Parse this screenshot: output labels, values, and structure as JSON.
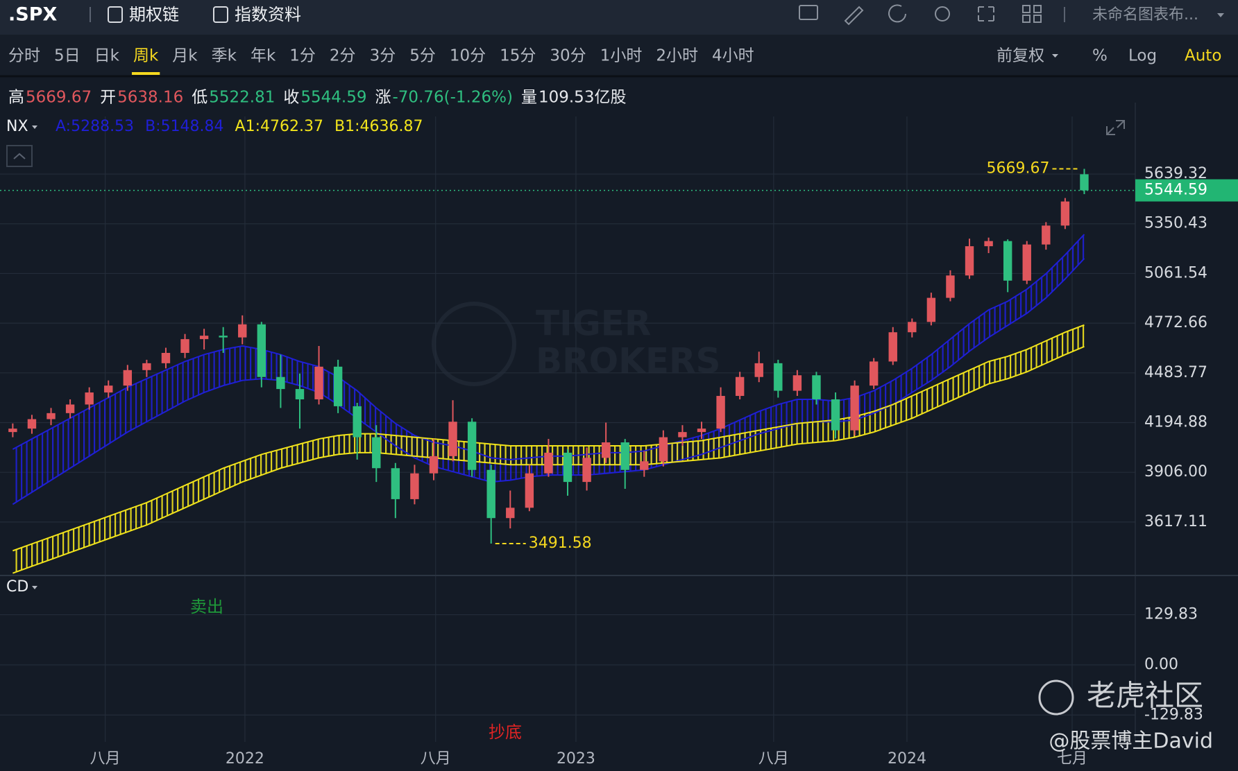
{
  "toolbar": {
    "symbol": ".SPX",
    "links": [
      "期权链",
      "指数资料"
    ],
    "layout_name": "未命名图表布..."
  },
  "periods": {
    "items": [
      "分时",
      "5日",
      "日k",
      "周k",
      "月k",
      "季k",
      "年k",
      "1分",
      "2分",
      "3分",
      "5分",
      "10分",
      "15分",
      "30分",
      "1小时",
      "2小时",
      "4小时"
    ],
    "active": 3
  },
  "options": {
    "items": [
      "前复权",
      "%",
      "Log",
      "Auto"
    ],
    "active": 3
  },
  "quote": [
    {
      "label": "高",
      "value": 5669.67,
      "color": "#e0575d"
    },
    {
      "label": "开",
      "value": 5638.16,
      "color": "#e0575d"
    },
    {
      "label": "低",
      "value": 5522.81,
      "color": "#2fbf80"
    },
    {
      "label": "收",
      "value": 5544.59,
      "color": "#2fbf80"
    },
    {
      "label": "涨",
      "value": "-70.76(-1.26%)",
      "color": "#2fbf80"
    },
    {
      "label": "量",
      "value": "109.53亿股",
      "color": "#e6e8ec"
    }
  ],
  "watermarks": {
    "logo": [
      "TIGER",
      "BROKERS"
    ],
    "community": "老虎社区",
    "author": "@股票博主David"
  },
  "chart_data": [
    {
      "type": "candlestick",
      "indicator": "NX",
      "legend": [
        "A:5288.53",
        "B:5148.84",
        "A1:4762.37",
        "B1:4636.87"
      ],
      "up_color": "#e0575d",
      "down_color": "#2fbf80",
      "xlim": [
        0,
        178
      ],
      "ylim": [
        3314.5,
        5974
      ],
      "xticks": [
        {
          "value": 16.5,
          "label": "八月"
        },
        {
          "value": 38.4,
          "label": "2022"
        },
        {
          "value": 68.3,
          "label": "八月"
        },
        {
          "value": 90.3,
          "label": "2023"
        },
        {
          "value": 121.3,
          "label": "八月"
        },
        {
          "value": 142.2,
          "label": "2024"
        },
        {
          "value": 168.1,
          "label": "七月"
        }
      ],
      "yticks": [
        3617.11,
        {
          "value": 3906,
          "label": "3906.00"
        },
        4194.88,
        4483.77,
        4772.66,
        5061.54,
        5350.43,
        5639.32
      ],
      "grid": true,
      "x": [
        2,
        5,
        8,
        11,
        14,
        17,
        20,
        23,
        26,
        29,
        32,
        35,
        38,
        41,
        44,
        47,
        50,
        53,
        56,
        59,
        62,
        65,
        68,
        71,
        74,
        77,
        80,
        83,
        86,
        89,
        92,
        95,
        98,
        101,
        104,
        107,
        110,
        113,
        116,
        119,
        122,
        125,
        128,
        131,
        134,
        137,
        140,
        143,
        146,
        149,
        152,
        155,
        158,
        161,
        164,
        167,
        170
      ],
      "open": [
        4140,
        4160,
        4215,
        4250,
        4300,
        4370,
        4410,
        4500,
        4540,
        4600,
        4680,
        4700,
        4690,
        4766,
        4460,
        4390,
        4330,
        4520,
        4290,
        4110,
        3930,
        3750,
        3900,
        4000,
        4200,
        3920,
        3640,
        3700,
        3900,
        4020,
        3850,
        3990,
        4080,
        3920,
        3970,
        4110,
        4140,
        4160,
        4350,
        4460,
        4540,
        4380,
        4470,
        4330,
        4150,
        4410,
        4550,
        4720,
        4780,
        4920,
        5050,
        5220,
        5250,
        5020,
        5230,
        5340,
        5638.16
      ],
      "high": [
        4190,
        4240,
        4280,
        4330,
        4400,
        4440,
        4530,
        4560,
        4630,
        4710,
        4740,
        4750,
        4818,
        4780,
        4590,
        4480,
        4640,
        4560,
        4310,
        4180,
        3960,
        3950,
        4100,
        4325,
        4220,
        3950,
        3800,
        3950,
        4100,
        4040,
        4050,
        4195,
        4100,
        4030,
        4150,
        4180,
        4200,
        4400,
        4490,
        4607,
        4560,
        4500,
        4490,
        4370,
        4440,
        4570,
        4750,
        4800,
        4950,
        5080,
        5264,
        5270,
        5260,
        5250,
        5360,
        5500,
        5669.67
      ],
      "low": [
        4110,
        4130,
        4180,
        4220,
        4270,
        4340,
        4380,
        4460,
        4510,
        4570,
        4620,
        4600,
        4650,
        4400,
        4280,
        4160,
        4300,
        4250,
        3980,
        3850,
        3640,
        3720,
        3860,
        3970,
        3880,
        3491.58,
        3580,
        3680,
        3880,
        3770,
        3800,
        3960,
        3810,
        3880,
        3940,
        4060,
        4100,
        4140,
        4330,
        4430,
        4340,
        4350,
        4300,
        4103,
        4120,
        4390,
        4530,
        4690,
        4760,
        4900,
        5030,
        5180,
        4953,
        5000,
        5200,
        5320,
        5522.81
      ],
      "close": [
        4160,
        4215,
        4250,
        4300,
        4370,
        4410,
        4500,
        4540,
        4600,
        4680,
        4700,
        4690,
        4766,
        4460,
        4390,
        4330,
        4520,
        4290,
        4110,
        3930,
        3750,
        3900,
        4000,
        4200,
        3920,
        3640,
        3700,
        3900,
        4020,
        3850,
        3990,
        4080,
        3920,
        3970,
        4110,
        4140,
        4160,
        4350,
        4460,
        4540,
        4380,
        4470,
        4330,
        4150,
        4410,
        4550,
        4720,
        4780,
        4920,
        5050,
        5220,
        5250,
        5020,
        5230,
        5340,
        5480,
        5544.59
      ],
      "series": [
        {
          "color": "#1f1fd6",
          "values": [
            4040,
            4100,
            4160,
            4220,
            4280,
            4340,
            4400,
            4450,
            4500,
            4550,
            4590,
            4620,
            4640,
            4620,
            4590,
            4550,
            4520,
            4460,
            4380,
            4280,
            4190,
            4120,
            4080,
            4060,
            4030,
            3990,
            3980,
            3990,
            4000,
            4000,
            4010,
            4020,
            4020,
            4030,
            4060,
            4090,
            4120,
            4160,
            4210,
            4260,
            4300,
            4330,
            4330,
            4320,
            4340,
            4380,
            4440,
            4510,
            4590,
            4680,
            4770,
            4850,
            4900,
            4970,
            5060,
            5170,
            5288.53
          ]
        },
        {
          "color": "#1f1fd6",
          "values": [
            3720,
            3790,
            3860,
            3930,
            4000,
            4070,
            4140,
            4200,
            4260,
            4320,
            4370,
            4410,
            4440,
            4450,
            4440,
            4410,
            4370,
            4300,
            4220,
            4140,
            4060,
            3990,
            3940,
            3910,
            3880,
            3850,
            3860,
            3880,
            3890,
            3890,
            3890,
            3900,
            3910,
            3920,
            3950,
            3980,
            4010,
            4050,
            4090,
            4130,
            4160,
            4190,
            4200,
            4200,
            4210,
            4250,
            4300,
            4370,
            4440,
            4520,
            4610,
            4690,
            4760,
            4830,
            4920,
            5030,
            5148.84
          ]
        },
        {
          "color": "#f2e41c",
          "values": [
            3450,
            3490,
            3530,
            3570,
            3610,
            3650,
            3690,
            3730,
            3780,
            3830,
            3880,
            3930,
            3970,
            4010,
            4040,
            4070,
            4100,
            4120,
            4130,
            4130,
            4120,
            4110,
            4100,
            4090,
            4080,
            4070,
            4060,
            4060,
            4060,
            4060,
            4060,
            4060,
            4060,
            4060,
            4070,
            4080,
            4090,
            4110,
            4130,
            4150,
            4170,
            4190,
            4200,
            4210,
            4230,
            4260,
            4300,
            4350,
            4400,
            4450,
            4500,
            4550,
            4580,
            4620,
            4670,
            4720,
            4762.37
          ]
        },
        {
          "color": "#f2e41c",
          "values": [
            3320,
            3360,
            3400,
            3440,
            3480,
            3520,
            3560,
            3600,
            3650,
            3700,
            3750,
            3800,
            3850,
            3890,
            3930,
            3960,
            3990,
            4010,
            4020,
            4020,
            4010,
            4000,
            3990,
            3980,
            3970,
            3960,
            3950,
            3950,
            3950,
            3950,
            3950,
            3950,
            3950,
            3950,
            3960,
            3970,
            3980,
            3990,
            4010,
            4030,
            4050,
            4070,
            4080,
            4090,
            4110,
            4140,
            4180,
            4220,
            4270,
            4320,
            4370,
            4420,
            4450,
            4490,
            4540,
            4590,
            4636.87
          ]
        }
      ]
    },
    {
      "type": "indicator",
      "indicator": "CD",
      "ylim": [
        -199.3,
        225.9
      ],
      "yticks": [
        129.83,
        {
          "value": 0,
          "label": "0.00"
        },
        -129.83
      ],
      "grid": true,
      "annotations": [
        {
          "text": "卖出",
          "color": "#1f9a3a"
        },
        {
          "text": "抄底",
          "color": "#e02424"
        }
      ]
    }
  ]
}
